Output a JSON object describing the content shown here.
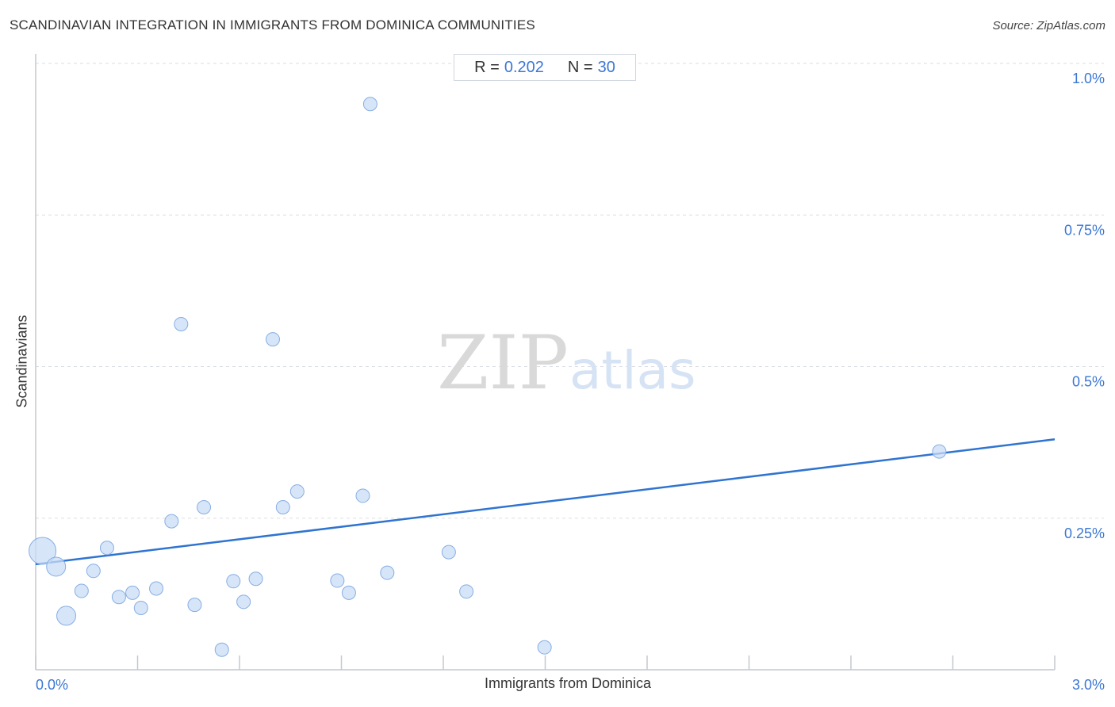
{
  "header": {
    "title": "SCANDINAVIAN INTEGRATION IN IMMIGRANTS FROM DOMINICA COMMUNITIES",
    "source": "Source: ZipAtlas.com"
  },
  "stats": {
    "r_label": "R =",
    "r_value": "0.202",
    "n_label": "N =",
    "n_value": "30"
  },
  "watermark": {
    "zip": "ZIP",
    "atlas": "atlas"
  },
  "colors": {
    "accent": "#2f74d0",
    "point_fill": "#c9dcf5",
    "point_stroke": "#86aee3",
    "grid": "#d9dde3",
    "axis": "#c4c8ce",
    "tick_label": "#3b77d4"
  },
  "chart_data": {
    "type": "scatter",
    "xlabel": "Immigrants from Dominica",
    "ylabel": "Scandinavians",
    "xlim": [
      0,
      3.0
    ],
    "ylim": [
      0,
      1.0
    ],
    "x_tick_labels": [
      {
        "value": 0,
        "label": "0.0%"
      },
      {
        "value": 3.0,
        "label": "3.0%"
      }
    ],
    "y_tick_labels": [
      {
        "value": 0.25,
        "label": "0.25%"
      },
      {
        "value": 0.5,
        "label": "0.5%"
      },
      {
        "value": 0.75,
        "label": "0.75%"
      },
      {
        "value": 1.0,
        "label": "1.0%"
      }
    ],
    "grid": true,
    "points": [
      {
        "x": 0.02,
        "y": 0.196,
        "size": "large"
      },
      {
        "x": 0.06,
        "y": 0.17,
        "size": "medium"
      },
      {
        "x": 0.09,
        "y": 0.089,
        "size": "medium"
      },
      {
        "x": 0.135,
        "y": 0.13
      },
      {
        "x": 0.17,
        "y": 0.163
      },
      {
        "x": 0.21,
        "y": 0.201
      },
      {
        "x": 0.245,
        "y": 0.12
      },
      {
        "x": 0.285,
        "y": 0.127
      },
      {
        "x": 0.31,
        "y": 0.102
      },
      {
        "x": 0.355,
        "y": 0.134
      },
      {
        "x": 0.4,
        "y": 0.245
      },
      {
        "x": 0.428,
        "y": 0.57
      },
      {
        "x": 0.468,
        "y": 0.107
      },
      {
        "x": 0.495,
        "y": 0.268
      },
      {
        "x": 0.548,
        "y": 0.033
      },
      {
        "x": 0.582,
        "y": 0.146
      },
      {
        "x": 0.612,
        "y": 0.112
      },
      {
        "x": 0.648,
        "y": 0.15
      },
      {
        "x": 0.698,
        "y": 0.545
      },
      {
        "x": 0.728,
        "y": 0.268
      },
      {
        "x": 0.77,
        "y": 0.294
      },
      {
        "x": 0.888,
        "y": 0.147
      },
      {
        "x": 0.922,
        "y": 0.127
      },
      {
        "x": 0.963,
        "y": 0.287
      },
      {
        "x": 0.985,
        "y": 0.933
      },
      {
        "x": 1.035,
        "y": 0.16
      },
      {
        "x": 1.216,
        "y": 0.194
      },
      {
        "x": 1.268,
        "y": 0.129
      },
      {
        "x": 1.498,
        "y": 0.037
      },
      {
        "x": 2.66,
        "y": 0.36
      }
    ],
    "trendline": {
      "x": [
        0,
        3.0
      ],
      "y": [
        0.174,
        0.38
      ]
    }
  }
}
